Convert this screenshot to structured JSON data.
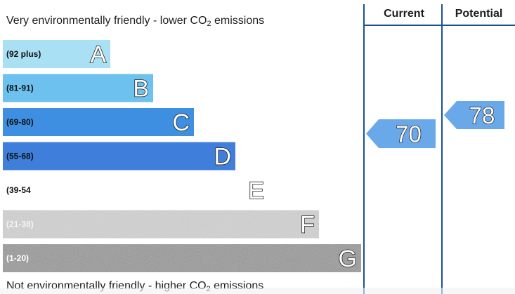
{
  "captions": {
    "top_prefix": "Very environmentally friendly - lower CO",
    "top_sub": "2",
    "top_suffix": " emissions",
    "bottom_prefix": "Not environmentally friendly - higher CO",
    "bottom_sub": "2",
    "bottom_suffix": " emissions"
  },
  "columns": {
    "current": "Current",
    "potential": "Potential"
  },
  "chart_data": {
    "type": "bar",
    "bands": [
      {
        "letter": "A",
        "range": "(92 plus)",
        "color": "#a9e0f3"
      },
      {
        "letter": "B",
        "range": "(81-91)",
        "color": "#6cc1ee"
      },
      {
        "letter": "C",
        "range": "(69-80)",
        "color": "#3e8fe2"
      },
      {
        "letter": "D",
        "range": "(55-68)",
        "color": "#3f7fdb"
      },
      {
        "letter": "E",
        "range": "(39-54",
        "color": "#ffffff"
      },
      {
        "letter": "F",
        "range": "(21-38)",
        "color": "#d3d3d3"
      },
      {
        "letter": "G",
        "range": "(1-20)",
        "color": "#9a9a9a"
      }
    ],
    "current": {
      "value": 70,
      "band": "C",
      "color": "#6aa9e9"
    },
    "potential": {
      "value": 78,
      "band": "C",
      "color": "#6aa9e9"
    }
  }
}
